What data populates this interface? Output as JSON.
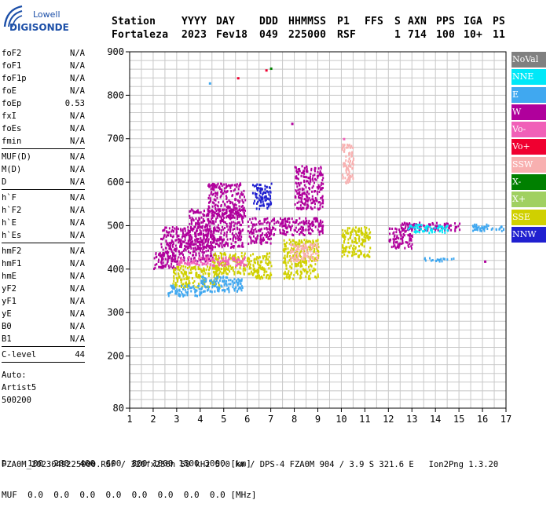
{
  "logo": {
    "line1": "Lowell",
    "line2": "DIGISONDE"
  },
  "header": {
    "labels": [
      "Station",
      "YYYY",
      "DAY",
      "DDD",
      "HHMMSS",
      "P1",
      "FFS",
      "S",
      "AXN",
      "PPS",
      "IGA",
      "PS"
    ],
    "values": [
      "Fortaleza",
      "2023",
      "Fev18",
      "049",
      "225000",
      "RSF",
      "",
      "1",
      "714",
      "100",
      "10+",
      "11"
    ]
  },
  "params": [
    {
      "group": [
        {
          "name": "foF2",
          "value": "N/A"
        },
        {
          "name": "foF1",
          "value": "N/A"
        },
        {
          "name": "foF1p",
          "value": "N/A"
        },
        {
          "name": "foE",
          "value": "N/A"
        },
        {
          "name": "foEp",
          "value": "0.53"
        },
        {
          "name": "fxI",
          "value": "N/A"
        },
        {
          "name": "foEs",
          "value": "N/A"
        },
        {
          "name": "fmin",
          "value": "N/A"
        }
      ]
    },
    {
      "group": [
        {
          "name": "MUF(D)",
          "value": "N/A"
        },
        {
          "name": "M(D)",
          "value": "N/A"
        },
        {
          "name": "D",
          "value": "N/A"
        }
      ]
    },
    {
      "group": [
        {
          "name": "h`F",
          "value": "N/A"
        },
        {
          "name": "h`F2",
          "value": "N/A"
        },
        {
          "name": "h`E",
          "value": "N/A"
        },
        {
          "name": "h`Es",
          "value": "N/A"
        }
      ]
    },
    {
      "group": [
        {
          "name": "hmF2",
          "value": "N/A"
        },
        {
          "name": "hmF1",
          "value": "N/A"
        },
        {
          "name": "hmE",
          "value": "N/A"
        },
        {
          "name": "yF2",
          "value": "N/A"
        },
        {
          "name": "yF1",
          "value": "N/A"
        },
        {
          "name": "yE",
          "value": "N/A"
        },
        {
          "name": "B0",
          "value": "N/A"
        },
        {
          "name": "B1",
          "value": "N/A"
        }
      ]
    },
    {
      "group": [
        {
          "name": "C-level",
          "value": "44"
        }
      ]
    }
  ],
  "autoscale": {
    "line1": "Auto:",
    "line2": "Artist5",
    "line3": "500200"
  },
  "bottom_table": {
    "row1": "D    100  200  400  600  800 1000 1500 3000 [km]",
    "row2": "MUF  0.0  0.0  0.0  0.0  0.0  0.0  0.0  0.0 [MHz]"
  },
  "footer": "FZA0M_2023049225000.RSF / 320fx256h 50 kHz 5.0 km / DPS-4 FZA0M 904 / 3.9 S 321.6 E   Ion2Png 1.3.20",
  "legend": [
    {
      "label": "NoVal",
      "color": "#808080"
    },
    {
      "label": "NNE",
      "color": "#00e8f8"
    },
    {
      "label": "E",
      "color": "#40a8f0"
    },
    {
      "label": "W",
      "color": "#b0009c"
    },
    {
      "label": "Vo-",
      "color": "#f060b8"
    },
    {
      "label": "Vo+",
      "color": "#f00030"
    },
    {
      "label": "SSW",
      "color": "#f8b0b0"
    },
    {
      "label": "X-",
      "color": "#008000"
    },
    {
      "label": "X+",
      "color": "#a0d060"
    },
    {
      "label": "SSE",
      "color": "#d0d000"
    },
    {
      "label": "NNW",
      "color": "#2020d0"
    }
  ],
  "chart_data": {
    "type": "scatter",
    "xlim": [
      1,
      17
    ],
    "ylim": [
      80,
      900
    ],
    "x_ticks": [
      1,
      2,
      3,
      4,
      5,
      6,
      7,
      8,
      9,
      10,
      11,
      12,
      13,
      14,
      15,
      16,
      17
    ],
    "y_ticks": [
      80,
      200,
      300,
      400,
      500,
      600,
      700,
      800,
      900
    ],
    "grid": true,
    "legend_placement": "right",
    "clusters": [
      {
        "x": [
          2.0,
          3.0
        ],
        "y": [
          400,
          440
        ],
        "color": "W"
      },
      {
        "x": [
          2.3,
          4.6
        ],
        "y": [
          420,
          500
        ],
        "color": "W"
      },
      {
        "x": [
          2.8,
          4.8
        ],
        "y": [
          360,
          410
        ],
        "color": "SSE"
      },
      {
        "x": [
          2.6,
          4.2
        ],
        "y": [
          340,
          365
        ],
        "color": "E"
      },
      {
        "x": [
          4.0,
          5.8
        ],
        "y": [
          350,
          385
        ],
        "color": "E"
      },
      {
        "x": [
          3.5,
          5.8
        ],
        "y": [
          450,
          540
        ],
        "color": "W"
      },
      {
        "x": [
          4.3,
          5.9
        ],
        "y": [
          520,
          600
        ],
        "color": "W"
      },
      {
        "x": [
          4.5,
          6.0
        ],
        "y": [
          390,
          440
        ],
        "color": "SSE"
      },
      {
        "x": [
          3.0,
          6.0
        ],
        "y": [
          410,
          430
        ],
        "color": "Vo-"
      },
      {
        "x": [
          6.0,
          7.0
        ],
        "y": [
          380,
          440
        ],
        "color": "SSE"
      },
      {
        "x": [
          6.0,
          7.0
        ],
        "y": [
          460,
          520
        ],
        "color": "W"
      },
      {
        "x": [
          6.2,
          7.0
        ],
        "y": [
          540,
          600
        ],
        "color": "NNW"
      },
      {
        "x": [
          7.0,
          9.2
        ],
        "y": [
          480,
          520
        ],
        "color": "W"
      },
      {
        "x": [
          7.5,
          9.0
        ],
        "y": [
          380,
          470
        ],
        "color": "SSE"
      },
      {
        "x": [
          8.0,
          9.2
        ],
        "y": [
          540,
          640
        ],
        "color": "W"
      },
      {
        "x": [
          7.8,
          9.0
        ],
        "y": [
          420,
          460
        ],
        "color": "SSW"
      },
      {
        "x": [
          10.0,
          11.2
        ],
        "y": [
          430,
          500
        ],
        "color": "SSE"
      },
      {
        "x": [
          10.0,
          10.5
        ],
        "y": [
          600,
          690
        ],
        "color": "SSW"
      },
      {
        "x": [
          12.0,
          13.0
        ],
        "y": [
          450,
          500
        ],
        "color": "W"
      },
      {
        "x": [
          12.5,
          15.0
        ],
        "y": [
          490,
          510
        ],
        "color": "W"
      },
      {
        "x": [
          12.8,
          14.5
        ],
        "y": [
          485,
          505
        ],
        "color": "NNE"
      },
      {
        "x": [
          13.5,
          14.8
        ],
        "y": [
          420,
          428
        ],
        "color": "E"
      },
      {
        "x": [
          15.5,
          16.9
        ],
        "y": [
          488,
          505
        ],
        "color": "E"
      }
    ],
    "points": [
      {
        "x": 4.4,
        "y": 828,
        "color": "E"
      },
      {
        "x": 5.6,
        "y": 840,
        "color": "Vo+"
      },
      {
        "x": 6.8,
        "y": 858,
        "color": "Vo+"
      },
      {
        "x": 7.0,
        "y": 862,
        "color": "X-"
      },
      {
        "x": 7.9,
        "y": 735,
        "color": "W"
      },
      {
        "x": 10.1,
        "y": 700,
        "color": "Vo-"
      },
      {
        "x": 16.1,
        "y": 418,
        "color": "W"
      }
    ]
  }
}
